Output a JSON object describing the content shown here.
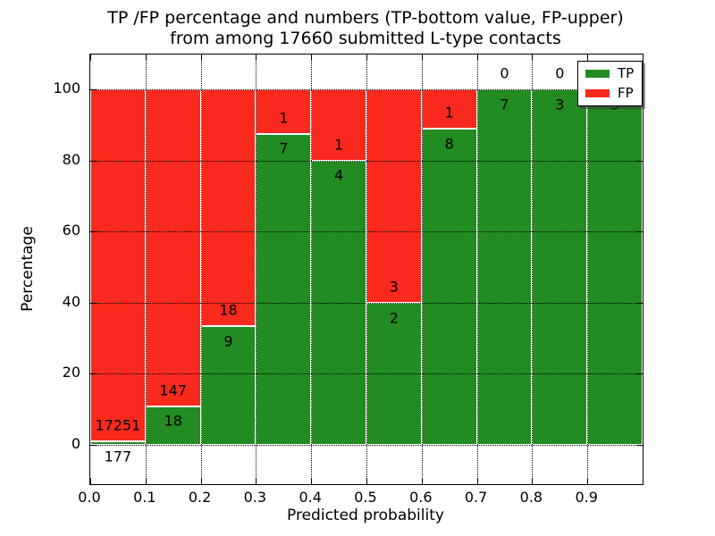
{
  "chart_data": {
    "type": "bar",
    "stacked": true,
    "percentage": true,
    "title_line1": "TP /FP percentage and numbers (TP-bottom value, FP-upper)",
    "title_line2": "from among 17660 submitted L-type contacts",
    "xlabel": "Predicted probability",
    "ylabel": "Percentage",
    "categories": [
      "0.0-0.1",
      "0.1-0.2",
      "0.2-0.3",
      "0.3-0.4",
      "0.4-0.5",
      "0.5-0.6",
      "0.6-0.7",
      "0.7-0.8",
      "0.8-0.9",
      "0.9-1.0"
    ],
    "xticks": [
      "0.0",
      "0.1",
      "0.2",
      "0.3",
      "0.4",
      "0.5",
      "0.6",
      "0.7",
      "0.8",
      "0.9"
    ],
    "yticks": [
      0,
      20,
      40,
      60,
      80,
      100
    ],
    "xlim": [
      0.0,
      1.0
    ],
    "ylim": [
      -11,
      110
    ],
    "grid": true,
    "series": [
      {
        "name": "TP",
        "color": "#228b22",
        "values": [
          177,
          18,
          9,
          7,
          4,
          2,
          8,
          7,
          3,
          3
        ]
      },
      {
        "name": "FP",
        "color": "#f9291d",
        "values": [
          17251,
          147,
          18,
          1,
          1,
          3,
          1,
          0,
          0,
          0
        ]
      }
    ],
    "legend": {
      "position": "upper right",
      "entries": [
        {
          "label": "TP",
          "color": "#228b22"
        },
        {
          "label": "FP",
          "color": "#f9291d"
        }
      ]
    }
  }
}
